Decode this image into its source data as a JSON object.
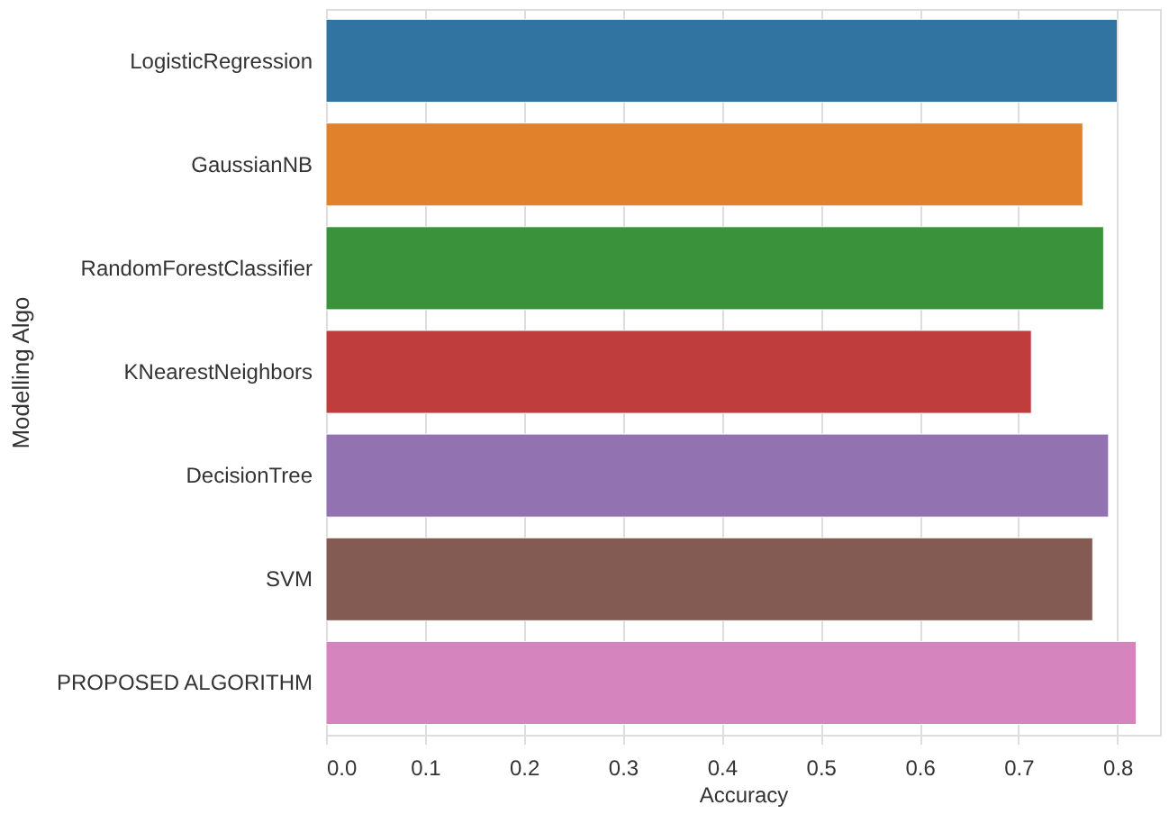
{
  "chart_data": {
    "type": "bar",
    "orientation": "horizontal",
    "xlabel": "Accuracy",
    "ylabel": "Modelling Algo",
    "categories": [
      "LogisticRegression",
      "GaussianNB",
      "RandomForestClassifier",
      "KNearestNeighbors",
      "DecisionTree",
      "SVM",
      "PROPOSED ALGORITHM"
    ],
    "values": [
      0.8,
      0.765,
      0.786,
      0.713,
      0.791,
      0.775,
      0.819
    ],
    "colors": [
      "#3274a1",
      "#e1812c",
      "#3a923a",
      "#c03d3e",
      "#9372b2",
      "#845b53",
      "#d684bd"
    ],
    "xlim": [
      0,
      0.843
    ],
    "xticks": [
      {
        "value": 0,
        "label": "0.0"
      },
      0.1,
      0.2,
      0.3,
      0.4,
      0.5,
      0.6,
      0.7,
      0.8
    ],
    "grid": "x"
  }
}
